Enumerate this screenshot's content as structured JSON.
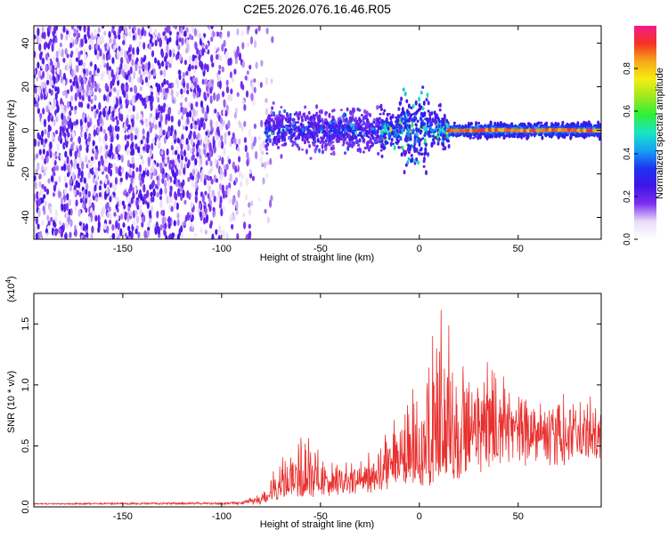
{
  "title": "C2E5.2026.076.16.46.R05",
  "colors": {
    "snr_line": "#e8302e",
    "spectrogram_bg": "#ffffff",
    "colormap": [
      "#ffffff",
      "#e9dcf8",
      "#7a2ff0",
      "#3f14e6",
      "#1d34f2",
      "#16a3f4",
      "#18e6c4",
      "#30ee3a",
      "#9ee81f",
      "#f5ee12",
      "#f7a81b",
      "#f43222",
      "#f41a8a"
    ]
  },
  "chart_data": [
    {
      "type": "heatmap",
      "title": "C2E5.2026.076.16.46.R05",
      "xlabel": "Height of straight line (km)",
      "ylabel": "Frequency (Hz)",
      "xlim": [
        -195,
        92
      ],
      "ylim": [
        -50,
        48
      ],
      "xticks": [
        -150,
        -100,
        -50,
        0,
        50
      ],
      "yticks": [
        -40,
        -20,
        0,
        20,
        40
      ],
      "grid": false,
      "description_of_structure": {
        "noise_region_x": [
          -195,
          -78
        ],
        "noise_region_amplitude": [
          0.05,
          0.25
        ],
        "signal_band_center_freq_hz": 0,
        "signal_band_x": [
          -78,
          92
        ],
        "peak_band_x": [
          15,
          92
        ],
        "peak_band_amplitude": 0.95
      },
      "colorbar": {
        "label": "Normalized spectral amplitude",
        "range": [
          0.0,
          1.0
        ],
        "ticks": [
          0.0,
          0.2,
          0.4,
          0.6,
          0.8
        ]
      }
    },
    {
      "type": "line",
      "xlabel": "Height of straight line (km)",
      "ylabel": "SNR (10 * v/v)",
      "multiplier_label": "(x10",
      "multiplier_exponent": "4",
      "multiplier_close": ")",
      "xlim": [
        -195,
        92
      ],
      "ylim": [
        0,
        1.75
      ],
      "xticks": [
        -150,
        -100,
        -50,
        0,
        50
      ],
      "yticks": [
        0.0,
        0.5,
        1.0,
        1.5
      ],
      "ytick_labels": [
        "0.0",
        "0.5",
        "1.0",
        "1.5"
      ],
      "grid": false,
      "series": [
        {
          "envelope_x": [
            -195,
            -90,
            -80,
            -70,
            -60,
            -50,
            -40,
            -30,
            -20,
            -10,
            0,
            10,
            20,
            30,
            40,
            50,
            60,
            70,
            80,
            90
          ],
          "baseline_y": [
            0.02,
            0.02,
            0.05,
            0.15,
            0.18,
            0.2,
            0.22,
            0.25,
            0.3,
            0.35,
            0.3,
            0.35,
            0.45,
            0.6,
            0.7,
            0.75,
            0.8,
            0.8,
            0.82,
            0.85
          ],
          "peak_y": [
            0.03,
            0.04,
            0.12,
            0.4,
            0.65,
            0.48,
            0.4,
            0.45,
            0.6,
            0.95,
            1.0,
            1.7,
            1.3,
            1.25,
            1.2,
            1.05,
            1.0,
            0.95,
            0.95,
            0.9
          ]
        }
      ]
    }
  ]
}
